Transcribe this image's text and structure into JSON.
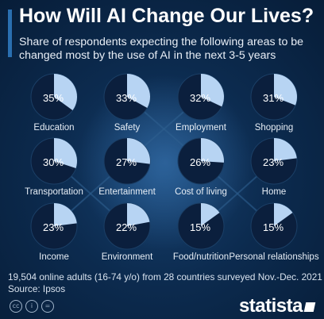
{
  "title": "How Will AI Change Our Lives?",
  "subtitle": "Share of respondents expecting the following areas to be changed most by the use of AI in the next 3-5 years",
  "footnote_line1": "19,504 online adults (16-74 y/o) from 28 countries surveyed Nov.-Dec. 2021",
  "footnote_line2": "Source: Ipsos",
  "brand": "statista",
  "colors": {
    "slice": "#b7d4f3",
    "pie_bg": "#0b1f3d",
    "background": "#0c2b4f"
  },
  "icons": [
    "cc-icon",
    "i-icon",
    "equals-icon"
  ],
  "chart_data": {
    "type": "pie",
    "unit": "%",
    "categories": [
      "Education",
      "Safety",
      "Employment",
      "Shopping",
      "Transportation",
      "Entertainment",
      "Cost of living",
      "Home",
      "Income",
      "Environment",
      "Food/nutrition",
      "Personal relationships"
    ],
    "values": [
      35,
      33,
      32,
      31,
      30,
      27,
      26,
      23,
      23,
      22,
      15,
      15
    ],
    "value_labels": [
      "35%",
      "33%",
      "32%",
      "31%",
      "30%",
      "27%",
      "26%",
      "23%",
      "23%",
      "22%",
      "15%",
      "15%"
    ]
  }
}
